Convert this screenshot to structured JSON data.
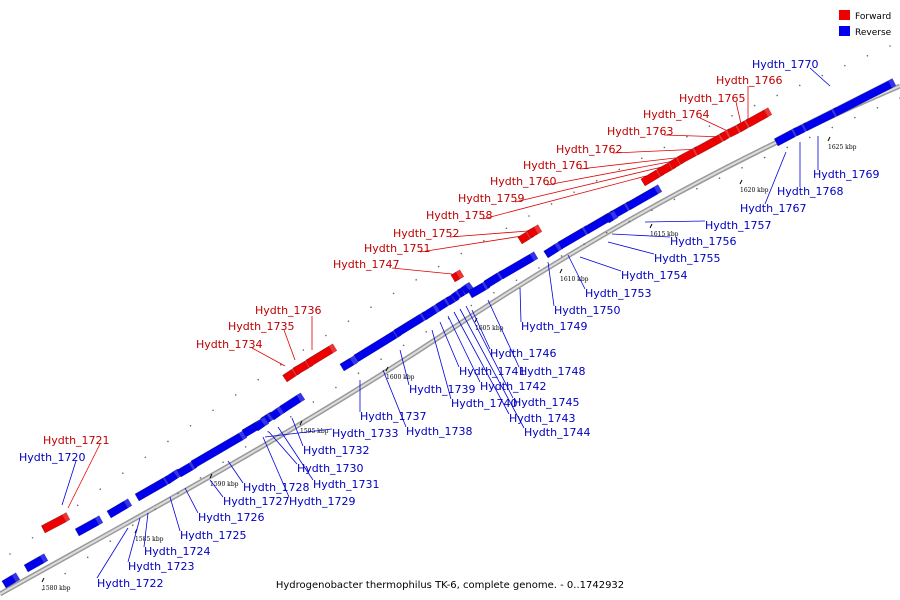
{
  "title": "Hydrogenobacter thermophilus TK-6, complete genome. - 0..1742932",
  "legend": [
    {
      "label": "Forward",
      "color": "#ee0000"
    },
    {
      "label": "Reverse",
      "color": "#0000ee"
    }
  ],
  "scale_labels": [
    "1580 kbp",
    "1585 kbp",
    "1590 kbp",
    "1595 kbp",
    "1600 kbp",
    "1605 kbp",
    "1610 kbp",
    "1615 kbp",
    "1620 kbp",
    "1625 kbp"
  ],
  "genes": [
    {
      "id": "Hydth_1720",
      "strand": "reverse"
    },
    {
      "id": "Hydth_1721",
      "strand": "forward"
    },
    {
      "id": "Hydth_1722",
      "strand": "reverse"
    },
    {
      "id": "Hydth_1723",
      "strand": "reverse"
    },
    {
      "id": "Hydth_1724",
      "strand": "reverse"
    },
    {
      "id": "Hydth_1725",
      "strand": "reverse"
    },
    {
      "id": "Hydth_1726",
      "strand": "reverse"
    },
    {
      "id": "Hydth_1727",
      "strand": "reverse"
    },
    {
      "id": "Hydth_1728",
      "strand": "reverse"
    },
    {
      "id": "Hydth_1729",
      "strand": "reverse"
    },
    {
      "id": "Hydth_1730",
      "strand": "reverse"
    },
    {
      "id": "Hydth_1731",
      "strand": "reverse"
    },
    {
      "id": "Hydth_1732",
      "strand": "reverse"
    },
    {
      "id": "Hydth_1733",
      "strand": "reverse"
    },
    {
      "id": "Hydth_1734",
      "strand": "forward"
    },
    {
      "id": "Hydth_1735",
      "strand": "forward"
    },
    {
      "id": "Hydth_1736",
      "strand": "forward"
    },
    {
      "id": "Hydth_1737",
      "strand": "reverse"
    },
    {
      "id": "Hydth_1738",
      "strand": "reverse"
    },
    {
      "id": "Hydth_1739",
      "strand": "reverse"
    },
    {
      "id": "Hydth_1740",
      "strand": "reverse"
    },
    {
      "id": "Hydth_1741",
      "strand": "reverse"
    },
    {
      "id": "Hydth_1742",
      "strand": "reverse"
    },
    {
      "id": "Hydth_1743",
      "strand": "reverse"
    },
    {
      "id": "Hydth_1744",
      "strand": "reverse"
    },
    {
      "id": "Hydth_1745",
      "strand": "reverse"
    },
    {
      "id": "Hydth_1746",
      "strand": "reverse"
    },
    {
      "id": "Hydth_1747",
      "strand": "forward"
    },
    {
      "id": "Hydth_1748",
      "strand": "reverse"
    },
    {
      "id": "Hydth_1749",
      "strand": "reverse"
    },
    {
      "id": "Hydth_1750",
      "strand": "reverse"
    },
    {
      "id": "Hydth_1751",
      "strand": "forward"
    },
    {
      "id": "Hydth_1752",
      "strand": "forward"
    },
    {
      "id": "Hydth_1753",
      "strand": "reverse"
    },
    {
      "id": "Hydth_1754",
      "strand": "reverse"
    },
    {
      "id": "Hydth_1755",
      "strand": "reverse"
    },
    {
      "id": "Hydth_1756",
      "strand": "reverse"
    },
    {
      "id": "Hydth_1757",
      "strand": "reverse"
    },
    {
      "id": "Hydth_1758",
      "strand": "forward"
    },
    {
      "id": "Hydth_1759",
      "strand": "forward"
    },
    {
      "id": "Hydth_1760",
      "strand": "forward"
    },
    {
      "id": "Hydth_1761",
      "strand": "forward"
    },
    {
      "id": "Hydth_1762",
      "strand": "forward"
    },
    {
      "id": "Hydth_1763",
      "strand": "forward"
    },
    {
      "id": "Hydth_1764",
      "strand": "forward"
    },
    {
      "id": "Hydth_1765",
      "strand": "forward"
    },
    {
      "id": "Hydth_1766",
      "strand": "forward"
    },
    {
      "id": "Hydth_1767",
      "strand": "reverse"
    },
    {
      "id": "Hydth_1768",
      "strand": "reverse"
    },
    {
      "id": "Hydth_1769",
      "strand": "reverse"
    },
    {
      "id": "Hydth_1770",
      "strand": "reverse"
    }
  ]
}
